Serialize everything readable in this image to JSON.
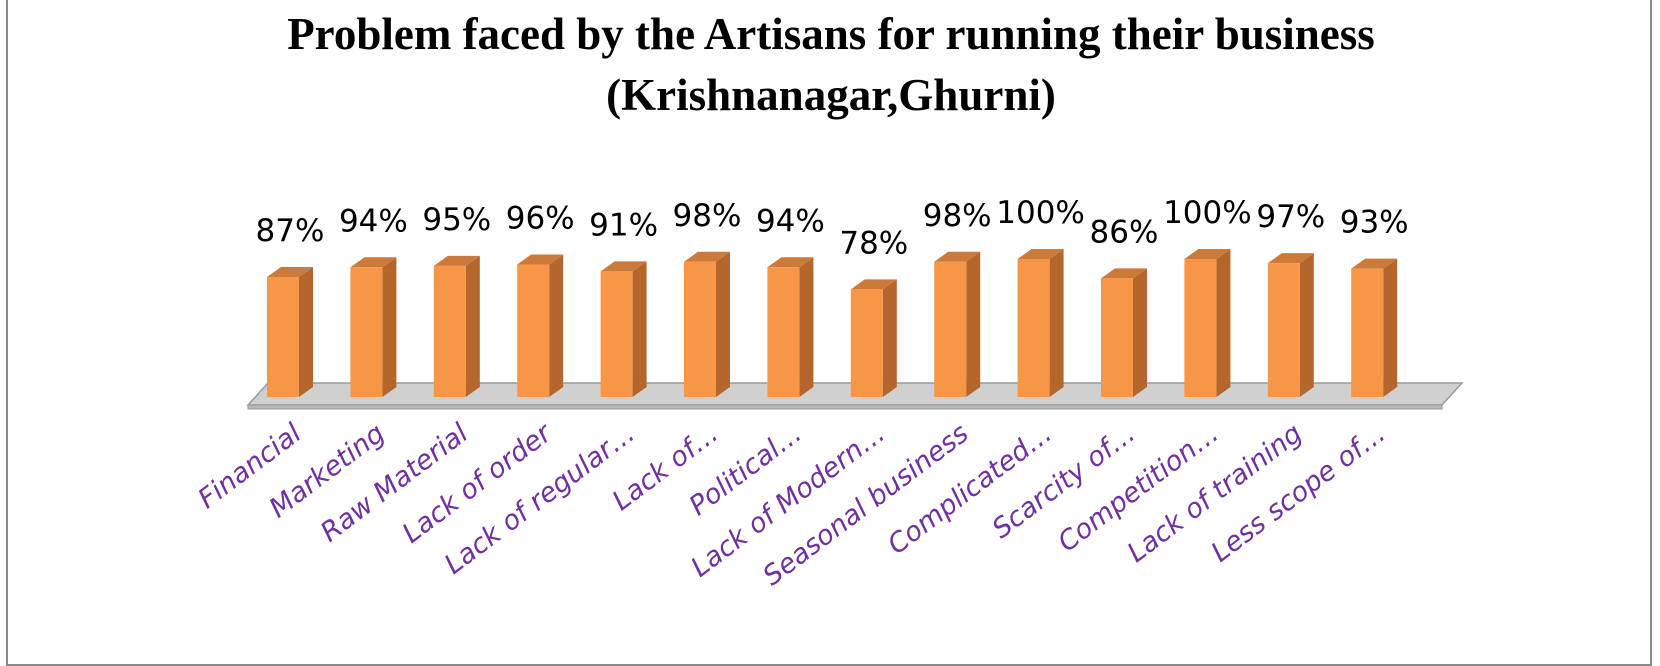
{
  "chart_data": {
    "type": "bar",
    "title": "Problem faced by the Artisans for running their business",
    "subtitle": "(Krishnanagar,Ghurni)",
    "categories": [
      "Financial",
      "Marketing",
      "Raw Material",
      "Lack of order",
      "Lack of regular…",
      "Lack of…",
      "Political…",
      "Lack of Modern…",
      "Seasonal business",
      "Complicated…",
      "Scarcity of…",
      "Competition…",
      "Lack of training",
      "Less scope of…"
    ],
    "values": [
      87,
      94,
      95,
      96,
      91,
      98,
      94,
      78,
      98,
      100,
      86,
      100,
      97,
      93
    ],
    "data_labels": [
      "87%",
      "94%",
      "95%",
      "96%",
      "91%",
      "98%",
      "94%",
      "78%",
      "98%",
      "100%",
      "86%",
      "100%",
      "97%",
      "93%"
    ],
    "value_unit": "%",
    "ylim": [
      0,
      100
    ],
    "grid": false,
    "legend": "none",
    "style": "3d-column",
    "colors": {
      "bar_front": "#F79646",
      "bar_side": "#B4662D",
      "bar_top": "#CC7A3A",
      "floor": "#D0D0D0",
      "category_text": "#7030A0"
    }
  }
}
